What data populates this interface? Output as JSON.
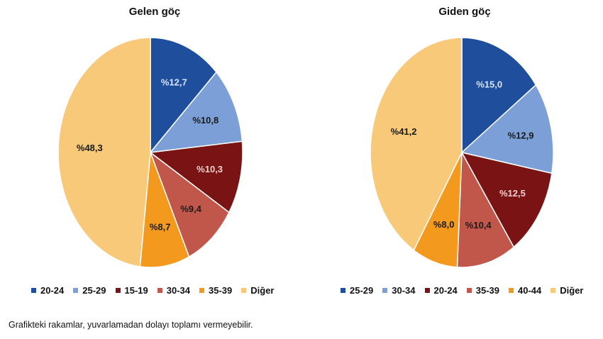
{
  "footnote": "Grafikteki rakamlar, yuvarlamadan dolayı toplamı vermeyebilir.",
  "chart_data": [
    {
      "type": "pie",
      "title": "Gelen göç",
      "slices": [
        {
          "label": "20-24",
          "value": 12.7,
          "text": "%12,7",
          "color": "#1f4e9c",
          "text_color": "#d7e6ff"
        },
        {
          "label": "25-29",
          "value": 10.8,
          "text": "%10,8",
          "color": "#7b9fd6",
          "text_color": "#1a1a1a"
        },
        {
          "label": "15-19",
          "value": 10.3,
          "text": "%10,3",
          "color": "#7a1414",
          "text_color": "#f2d0d0"
        },
        {
          "label": "30-34",
          "value": 9.4,
          "text": "%9,4",
          "color": "#c1574a",
          "text_color": "#1a1a1a"
        },
        {
          "label": "35-39",
          "value": 8.7,
          "text": "%8,7",
          "color": "#f39a1e",
          "text_color": "#1a1a1a"
        },
        {
          "label": "Diğer",
          "value": 48.3,
          "text": "%48,3",
          "color": "#f8c979",
          "text_color": "#1a1a1a"
        }
      ]
    },
    {
      "type": "pie",
      "title": "Giden göç",
      "slices": [
        {
          "label": "25-29",
          "value": 15.0,
          "text": "%15,0",
          "color": "#1f4e9c",
          "text_color": "#d7e6ff"
        },
        {
          "label": "30-34",
          "value": 12.9,
          "text": "%12,9",
          "color": "#7b9fd6",
          "text_color": "#1a1a1a"
        },
        {
          "label": "20-24",
          "value": 12.5,
          "text": "%12,5",
          "color": "#7a1414",
          "text_color": "#f2d0d0"
        },
        {
          "label": "35-39",
          "value": 10.4,
          "text": "%10,4",
          "color": "#c1574a",
          "text_color": "#1a1a1a"
        },
        {
          "label": "40-44",
          "value": 8.0,
          "text": "%8,0",
          "color": "#f39a1e",
          "text_color": "#1a1a1a"
        },
        {
          "label": "Diğer",
          "value": 41.2,
          "text": "%41,2",
          "color": "#f8c979",
          "text_color": "#1a1a1a"
        }
      ]
    }
  ]
}
